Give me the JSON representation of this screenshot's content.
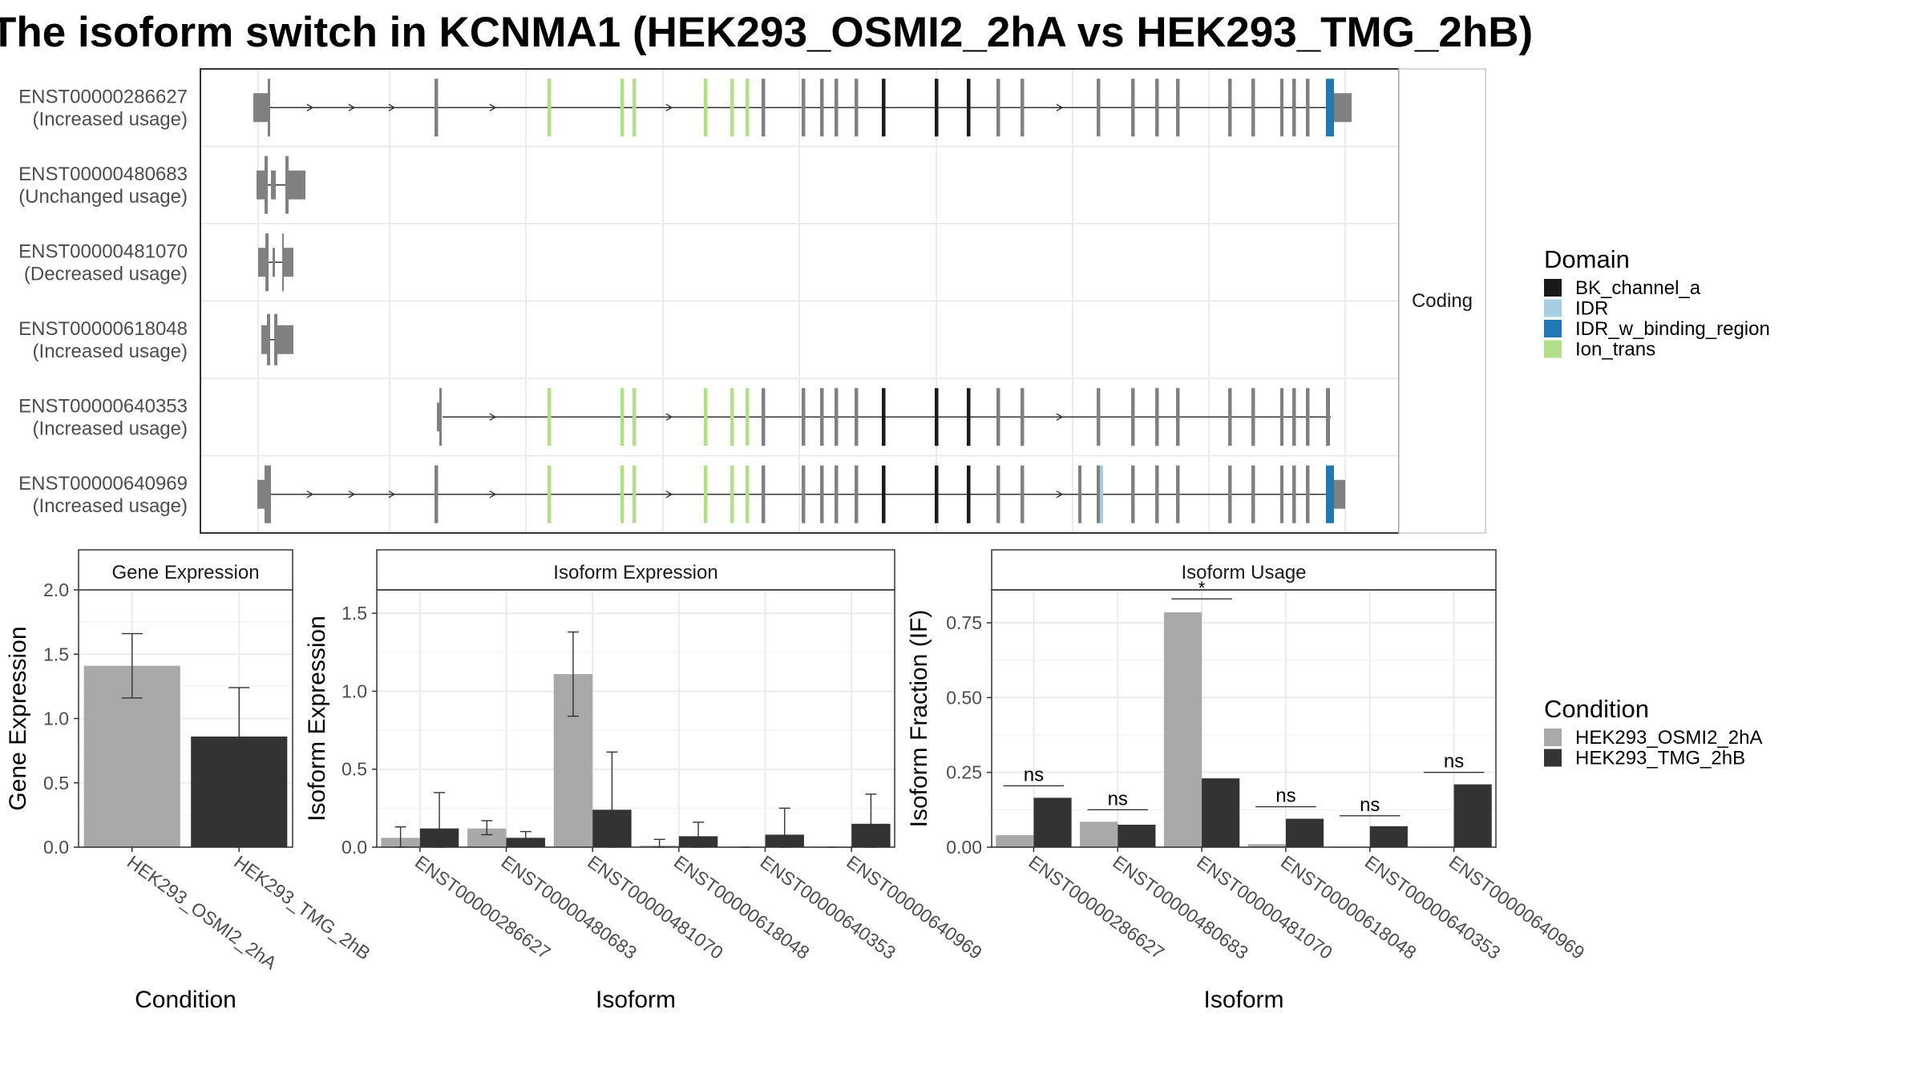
{
  "title": "The isoform switch in KCNMA1 (HEK293_OSMI2_2hA vs HEK293_TMG_2hB)",
  "colors": {
    "condA": "#a9a9a9",
    "condB": "#333333",
    "exon": "#808080",
    "BK_channel_a": "#1a1a1a",
    "IDR": "#a6cee3",
    "IDR_w_binding_region": "#1f78b4",
    "Ion_trans": "#b2df8a"
  },
  "transcripts": {
    "strip_label": "Coding",
    "items": [
      {
        "id": "ENST00000286627",
        "status": "(Increased usage)"
      },
      {
        "id": "ENST00000480683",
        "status": "(Unchanged usage)"
      },
      {
        "id": "ENST00000481070",
        "status": "(Decreased usage)"
      },
      {
        "id": "ENST00000618048",
        "status": "(Increased usage)"
      },
      {
        "id": "ENST00000640353",
        "status": "(Increased usage)"
      },
      {
        "id": "ENST00000640969",
        "status": "(Increased usage)"
      }
    ]
  },
  "legend_domain": {
    "title": "Domain",
    "entries": [
      {
        "label": "BK_channel_a",
        "color": "#1a1a1a"
      },
      {
        "label": "IDR",
        "color": "#a6cee3"
      },
      {
        "label": "IDR_w_binding_region",
        "color": "#1f78b4"
      },
      {
        "label": "Ion_trans",
        "color": "#b2df8a"
      }
    ]
  },
  "legend_condition": {
    "title": "Condition",
    "entries": [
      {
        "label": "HEK293_OSMI2_2hA",
        "color": "#a9a9a9"
      },
      {
        "label": "HEK293_TMG_2hB",
        "color": "#333333"
      }
    ]
  },
  "chart_data": [
    {
      "type": "bar",
      "panel": "Gene Expression",
      "xlabel": "Condition",
      "ylabel": "Gene Expression",
      "ylim": [
        0,
        2.0
      ],
      "yticks": [
        "0.0",
        "0.5",
        "1.0",
        "1.5",
        "2.0"
      ],
      "categories": [
        "HEK293_OSMI2_2hA",
        "HEK293_TMG_2hB"
      ],
      "values": [
        1.41,
        0.86
      ],
      "error": [
        [
          1.16,
          1.66
        ],
        [
          0.47,
          1.24
        ]
      ]
    },
    {
      "type": "bar",
      "panel": "Isoform Expression",
      "xlabel": "Isoform",
      "ylabel": "Isoform Expression",
      "ylim": [
        0,
        1.65
      ],
      "yticks": [
        "0.0",
        "0.5",
        "1.0",
        "1.5"
      ],
      "categories": [
        "ENST00000286627",
        "ENST00000480683",
        "ENST00000481070",
        "ENST00000618048",
        "ENST00000640353",
        "ENST00000640969"
      ],
      "series": [
        {
          "name": "HEK293_OSMI2_2hA",
          "values": [
            0.06,
            0.12,
            1.11,
            0.01,
            0.0,
            0.0
          ],
          "error": [
            [
              0.0,
              0.13
            ],
            [
              0.08,
              0.17
            ],
            [
              0.84,
              1.38
            ],
            [
              0.0,
              0.05
            ],
            [
              0.0,
              0.0
            ],
            [
              0.0,
              0.0
            ]
          ]
        },
        {
          "name": "HEK293_TMG_2hB",
          "values": [
            0.12,
            0.06,
            0.24,
            0.07,
            0.08,
            0.15
          ],
          "error": [
            [
              0.0,
              0.35
            ],
            [
              0.03,
              0.1
            ],
            [
              0.0,
              0.61
            ],
            [
              0.0,
              0.16
            ],
            [
              0.0,
              0.25
            ],
            [
              0.0,
              0.34
            ]
          ]
        }
      ]
    },
    {
      "type": "bar",
      "panel": "Isoform Usage",
      "xlabel": "Isoform",
      "ylabel": "Isoform Fraction (IF)",
      "ylim": [
        0,
        0.86
      ],
      "yticks": [
        "0.00",
        "0.25",
        "0.50",
        "0.75"
      ],
      "categories": [
        "ENST00000286627",
        "ENST00000480683",
        "ENST00000481070",
        "ENST00000618048",
        "ENST00000640353",
        "ENST00000640969"
      ],
      "series": [
        {
          "name": "HEK293_OSMI2_2hA",
          "values": [
            0.04,
            0.085,
            0.785,
            0.01,
            0.0,
            0.0
          ]
        },
        {
          "name": "HEK293_TMG_2hB",
          "values": [
            0.165,
            0.075,
            0.23,
            0.095,
            0.07,
            0.21
          ]
        }
      ],
      "significance": [
        "ns",
        "ns",
        "*",
        "ns",
        "ns",
        "ns"
      ],
      "sig_levels": [
        0.205,
        0.125,
        0.83,
        0.135,
        0.105,
        0.25
      ]
    }
  ]
}
